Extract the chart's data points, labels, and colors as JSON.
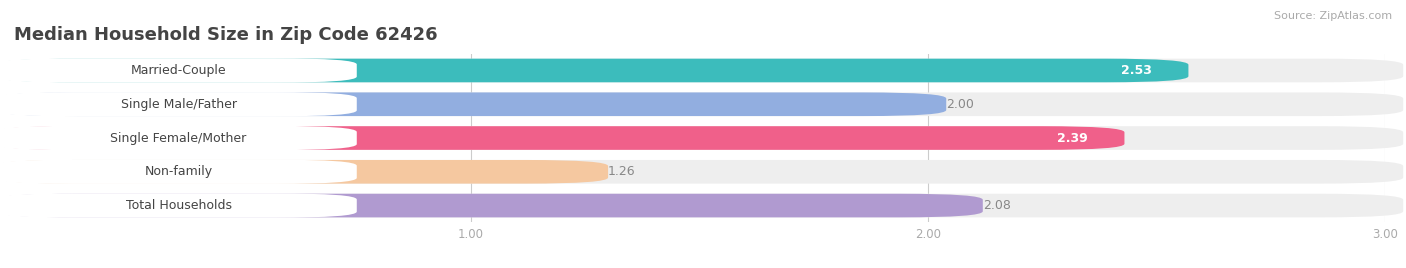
{
  "title": "Median Household Size in Zip Code 62426",
  "source": "Source: ZipAtlas.com",
  "categories": [
    "Married-Couple",
    "Single Male/Father",
    "Single Female/Mother",
    "Non-family",
    "Total Households"
  ],
  "values": [
    2.53,
    2.0,
    2.39,
    1.26,
    2.08
  ],
  "bar_colors": [
    "#3cbcbc",
    "#92aee0",
    "#f0608a",
    "#f5c8a0",
    "#b09ad0"
  ],
  "value_inside": [
    true,
    false,
    true,
    false,
    false
  ],
  "value_colors_inside": [
    "white",
    "#888888",
    "white",
    "#888888",
    "#888888"
  ],
  "xlim_data": [
    0,
    3.0
  ],
  "x_axis_start": 0,
  "xticks": [
    1.0,
    2.0,
    3.0
  ],
  "xtick_labels": [
    "1.00",
    "2.00",
    "3.00"
  ],
  "background_color": "#ffffff",
  "bar_bg_color": "#eeeeee",
  "label_bg_color": "#ffffff",
  "title_fontsize": 13,
  "label_fontsize": 9,
  "value_fontsize": 9,
  "source_fontsize": 8
}
